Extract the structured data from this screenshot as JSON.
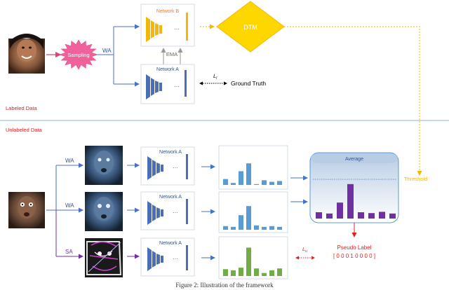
{
  "labeled": {
    "section_label": "Labeled Data",
    "sampling": "Sampling",
    "wa": "WA",
    "network_b": "Network B",
    "network_a": "Network A",
    "ema": "EMA",
    "dtm": "DTM",
    "loss_l": "L",
    "loss_l_sub": "l",
    "ground_truth": "Ground Truth",
    "dots": "···"
  },
  "unlabeled": {
    "section_label": "Unlabeled Data",
    "branches": [
      {
        "aug": "WA",
        "network": "Network A",
        "color": "#5b9bd5"
      },
      {
        "aug": "WA",
        "network": "Network A",
        "color": "#5b9bd5"
      },
      {
        "aug": "SA",
        "network": "Network A",
        "color": "#70ad47"
      }
    ],
    "average": "Average",
    "threshold": "Threshold",
    "loss_u": "L",
    "loss_u_sub": "u",
    "pseudo_label_title": "Pseudo Label",
    "pseudo_label_vector": "[ 0 0 0 1 0 0 0 0 ]"
  },
  "chart_data": [
    {
      "type": "bar",
      "series": [
        {
          "values": [
            0.15,
            0.05,
            0.35,
            0.55,
            0.02,
            0.12,
            0.08,
            0.1
          ]
        }
      ],
      "color": "#5b9bd5"
    },
    {
      "type": "bar",
      "series": [
        {
          "values": [
            0.1,
            0.08,
            0.4,
            0.65,
            0.12,
            0.08,
            0.1,
            0.08
          ]
        }
      ],
      "color": "#5b9bd5"
    },
    {
      "type": "bar",
      "series": [
        {
          "values": [
            0.18,
            0.15,
            0.22,
            0.75,
            0.2,
            0.08,
            0.15,
            0.2
          ]
        }
      ],
      "color": "#70ad47"
    },
    {
      "type": "bar",
      "series": [
        {
          "values": [
            0.15,
            0.12,
            0.38,
            0.82,
            0.15,
            0.13,
            0.16,
            0.12
          ]
        }
      ],
      "color": "#7030a0"
    }
  ],
  "caption": "Figure 2: Illustration of the framework"
}
